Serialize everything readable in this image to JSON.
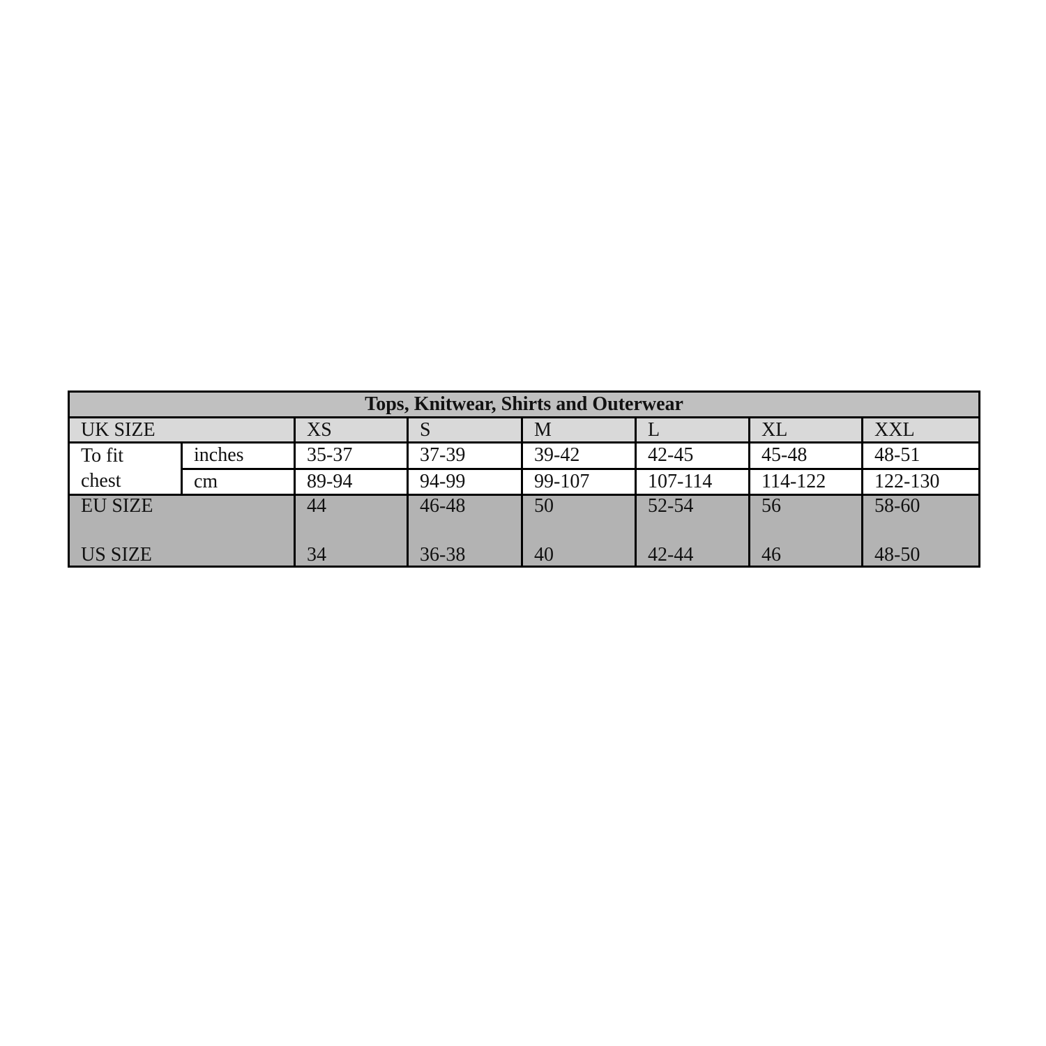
{
  "table": {
    "title": "Tops, Knitwear, Shirts and Outerwear",
    "uk_label": "UK SIZE",
    "sizes": [
      "XS",
      "S",
      "M",
      "L",
      "XL",
      "XXL"
    ],
    "chest_label_1": "To fit",
    "chest_label_2": "chest",
    "inches_label": "inches",
    "cm_label": "cm",
    "inches": [
      "35-37",
      "37-39",
      "39-42",
      "42-45",
      "45-48",
      "48-51"
    ],
    "cm": [
      "89-94",
      "94-99",
      "99-107",
      "107-114",
      "114-122",
      "122-130"
    ],
    "eu_label": "EU SIZE",
    "us_label": "US SIZE",
    "eu": [
      "44",
      "46-48",
      "50",
      "52-54",
      "56",
      "58-60"
    ],
    "us": [
      "34",
      "36-38",
      "40",
      "42-44",
      "46",
      "48-50"
    ]
  },
  "colors": {
    "title_bg": "#c0c0c0",
    "uk_bg": "#d9d9d9",
    "eu_us_bg": "#b3b3b3",
    "border": "#000000"
  }
}
